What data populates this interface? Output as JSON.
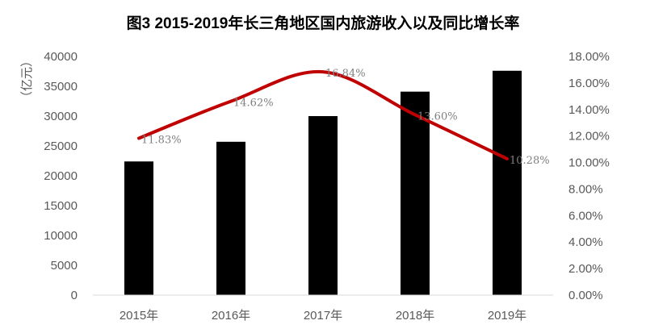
{
  "chart_data": {
    "type": "bar",
    "title": "图3   2015-2019年长三角地区国内旅游收入以及同比增长率",
    "ylabel": "（亿元）",
    "categories": [
      "2015年",
      "2016年",
      "2017年",
      "2018年",
      "2019年"
    ],
    "ylim": [
      0,
      40000
    ],
    "yticks": [
      "0",
      "5000",
      "10000",
      "15000",
      "20000",
      "25000",
      "30000",
      "35000",
      "40000"
    ],
    "y2lim": [
      0,
      18
    ],
    "y2ticks": [
      "0.00%",
      "2.00%",
      "4.00%",
      "6.00%",
      "8.00%",
      "10.00%",
      "12.00%",
      "14.00%",
      "16.00%",
      "18.00%"
    ],
    "series": [
      {
        "type": "bar",
        "values": [
          22400,
          25700,
          30000,
          34100,
          37600
        ],
        "color": "#000000"
      },
      {
        "type": "line",
        "axis": "secondary",
        "values": [
          11.83,
          14.62,
          16.84,
          13.6,
          10.28
        ],
        "labels": [
          "11.83%",
          "14.62%",
          "16.84%",
          "13.60%",
          "10.28%"
        ],
        "color": "#c00000",
        "smooth": true
      }
    ],
    "grid": false,
    "legend": "none"
  }
}
